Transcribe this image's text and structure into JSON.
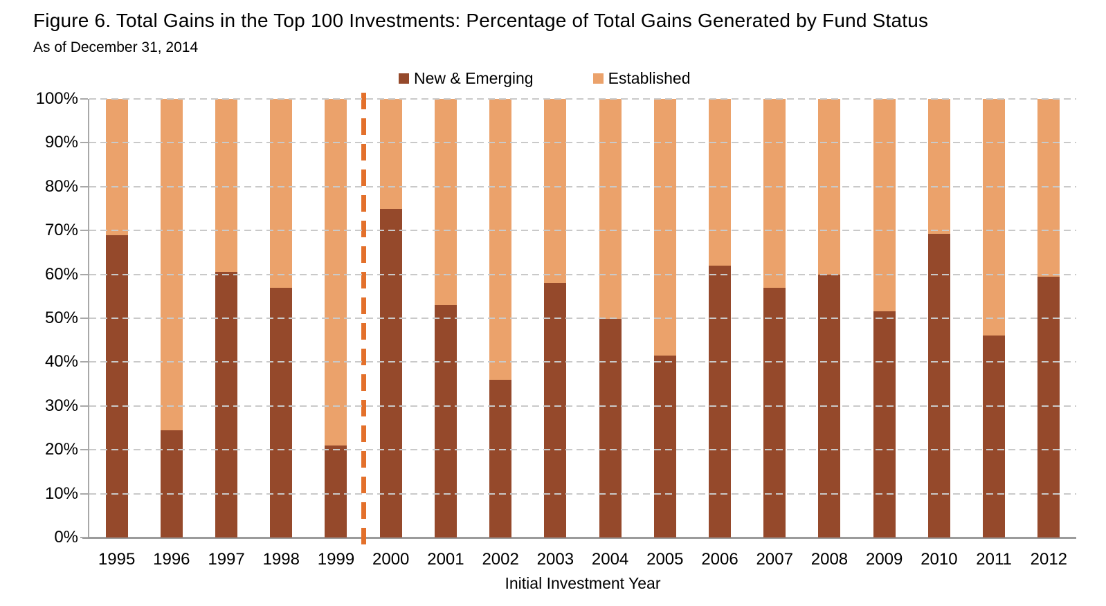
{
  "title": "Figure 6. Total Gains in the Top 100 Investments: Percentage of Total Gains Generated by Fund Status",
  "subtitle": "As of December 31, 2014",
  "legend": [
    {
      "label": "New & Emerging",
      "color": "#95492B"
    },
    {
      "label": "Established",
      "color": "#EBA26B"
    }
  ],
  "colors": {
    "new_emerging": "#95492B",
    "established": "#EBA26B",
    "divider_line": "#E3702B",
    "gridline": "#C9C9C9",
    "axis": "#9B9B9B"
  },
  "chart_data": {
    "type": "bar",
    "stacked": true,
    "title": "Figure 6. Total Gains in the Top 100 Investments: Percentage of Total Gains Generated by Fund Status",
    "subtitle": "As of December 31, 2014",
    "categories": [
      "1995",
      "1996",
      "1997",
      "1998",
      "1999",
      "2000",
      "2001",
      "2002",
      "2003",
      "2004",
      "2005",
      "2006",
      "2007",
      "2008",
      "2009",
      "2010",
      "2011",
      "2012"
    ],
    "series": [
      {
        "name": "New & Emerging",
        "color": "#95492B",
        "values": [
          69,
          24.5,
          60.5,
          57,
          21,
          75,
          53,
          36,
          58,
          49.8,
          41.5,
          62,
          57,
          60,
          51.5,
          69.3,
          46,
          59.5
        ]
      },
      {
        "name": "Established",
        "color": "#EBA26B",
        "values": [
          31,
          75.5,
          39.5,
          43,
          79,
          25,
          47,
          64,
          42,
          50.2,
          58.5,
          38,
          43,
          40,
          48.5,
          30.7,
          54,
          40.5
        ]
      }
    ],
    "xlabel": "Initial Investment Year",
    "ylabel": "",
    "ylim": [
      0,
      100
    ],
    "y_ticks": [
      "0%",
      "10%",
      "20%",
      "30%",
      "40%",
      "50%",
      "60%",
      "70%",
      "80%",
      "90%",
      "100%"
    ],
    "grid": "horizontal-dashed",
    "legend_position": "top-center",
    "divider_after_category": "1999"
  }
}
